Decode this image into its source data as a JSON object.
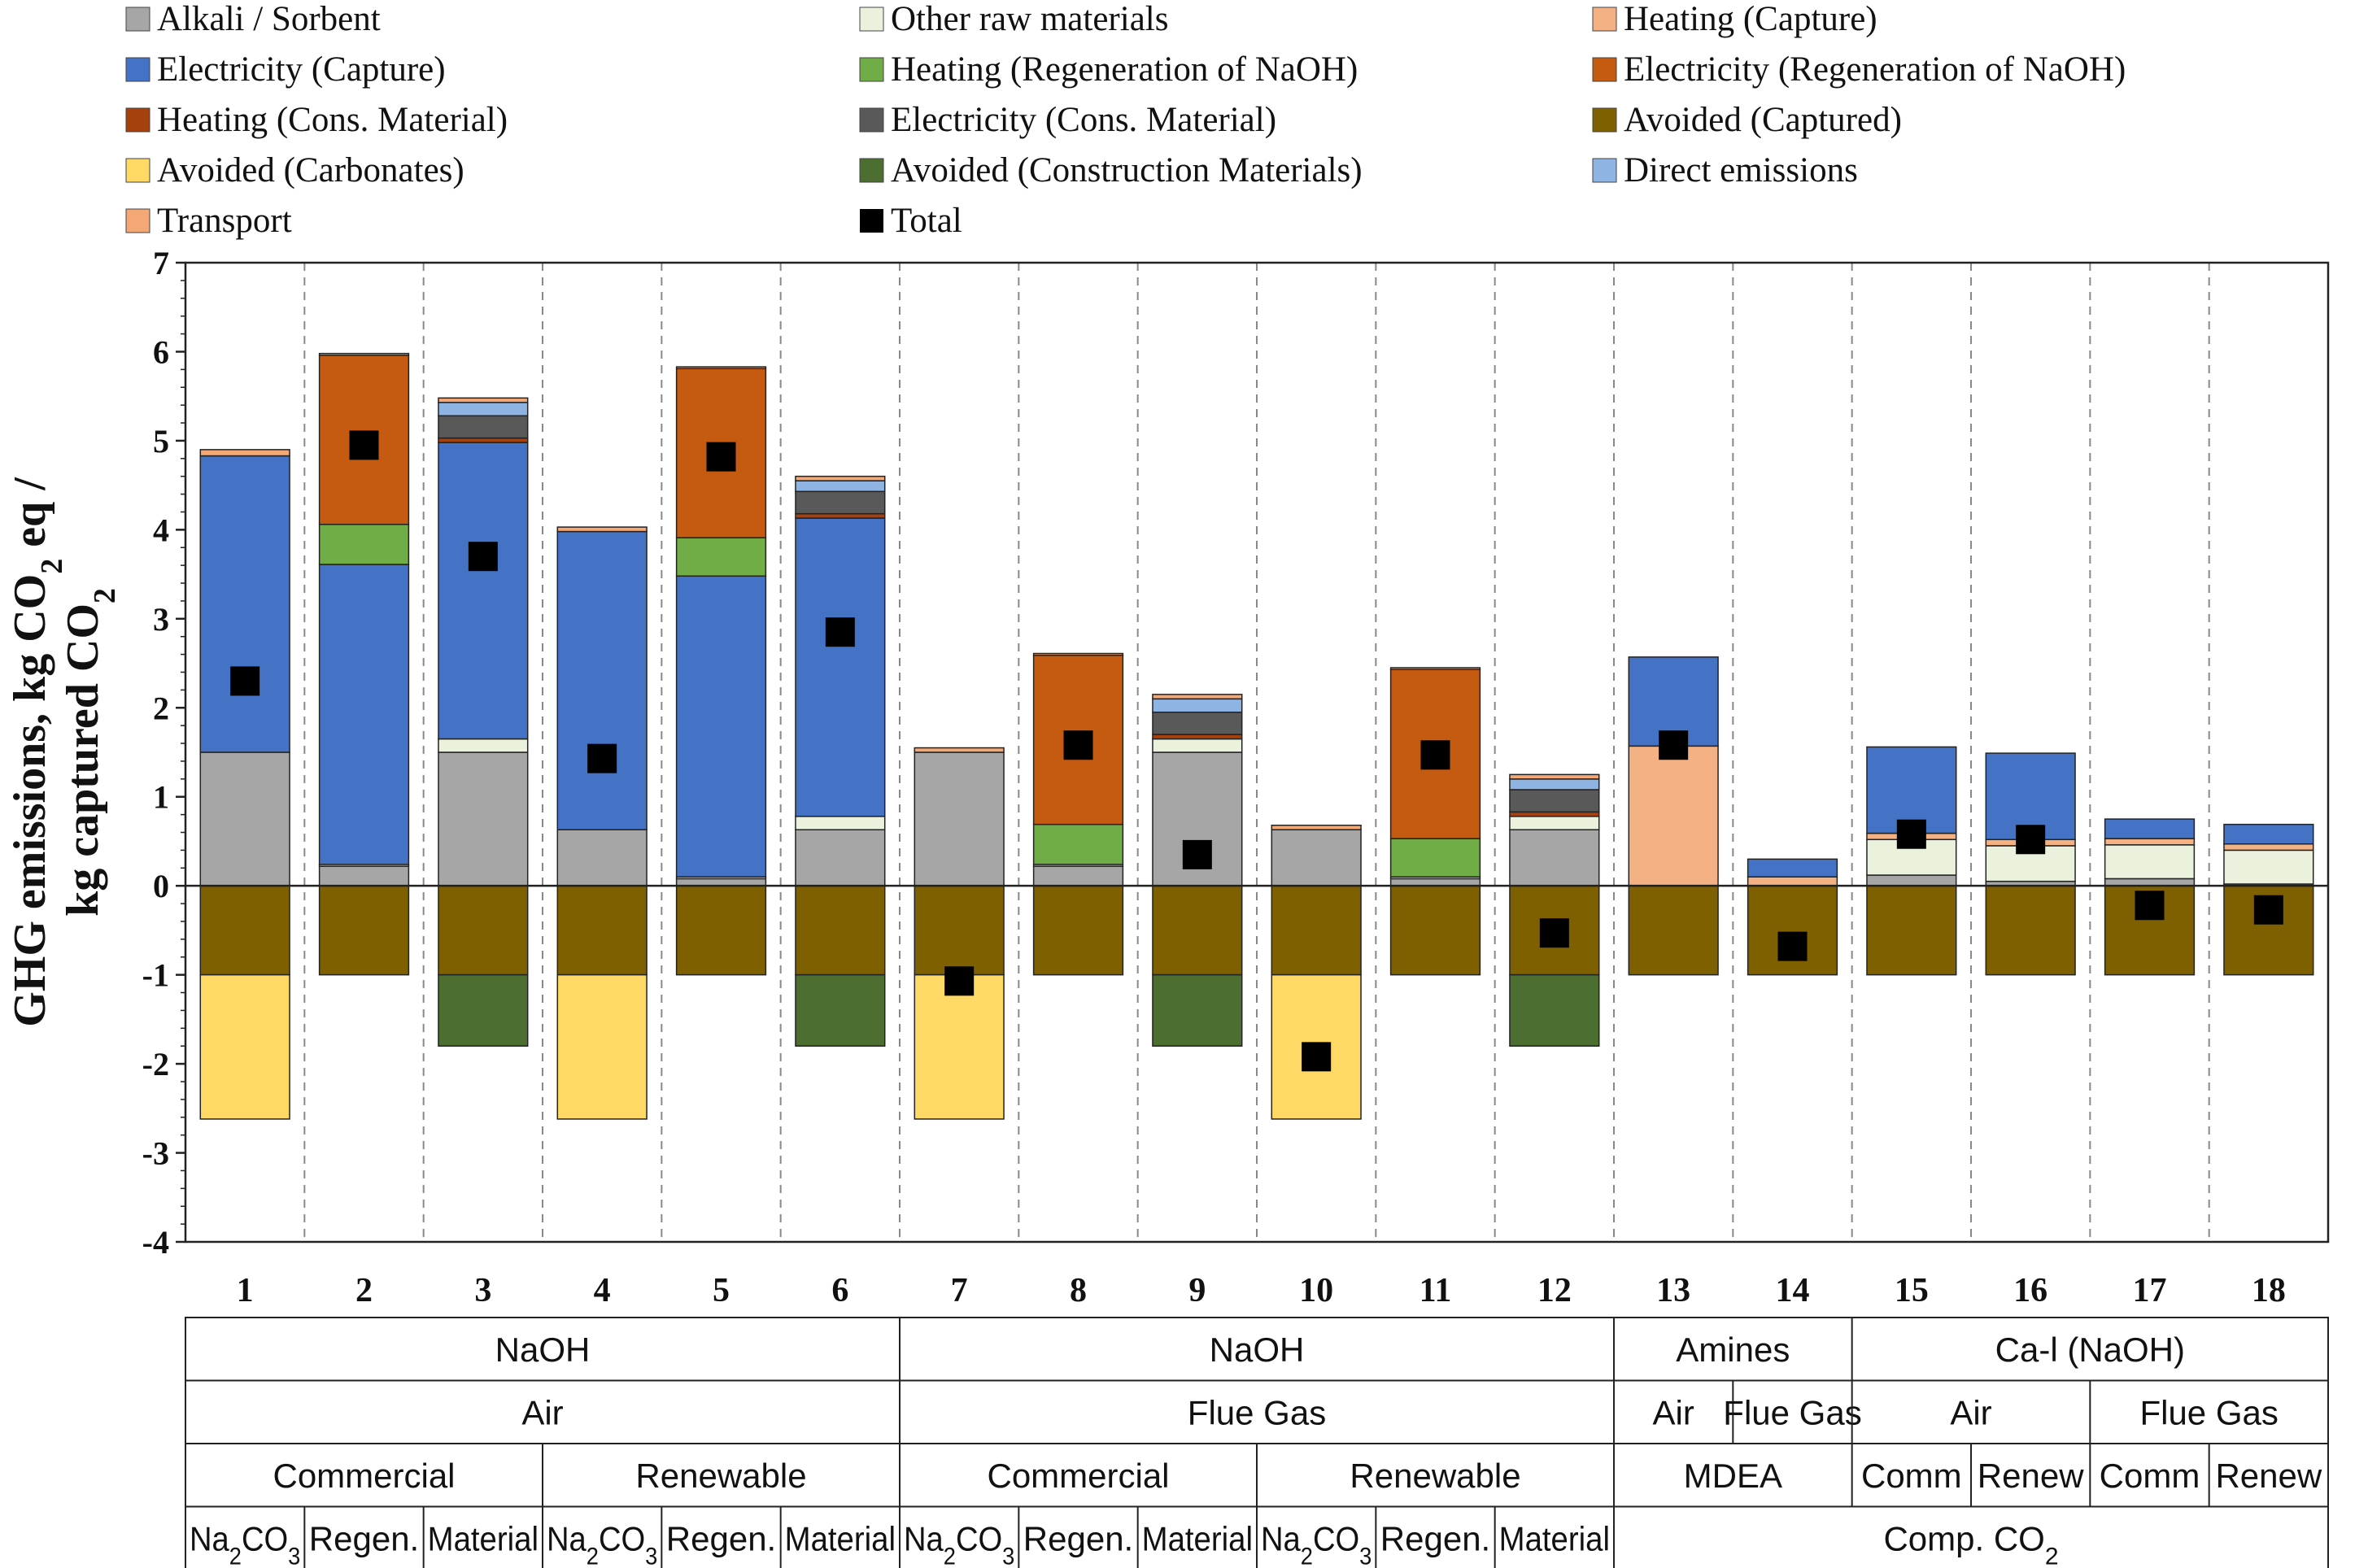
{
  "chart_data": {
    "type": "bar",
    "stacked": true,
    "ylabel_lines": [
      "GHG emissions, kg CO₂ eq /",
      "kg captured CO₂"
    ],
    "ylim": [
      -4,
      7
    ],
    "yticks": [
      "7",
      "6",
      "5",
      "4",
      "3",
      "2",
      "1",
      "0",
      "-1",
      "-2",
      "-3",
      "-4"
    ],
    "categories": [
      "1",
      "2",
      "3",
      "4",
      "5",
      "6",
      "7",
      "8",
      "9",
      "10",
      "11",
      "12",
      "13",
      "14",
      "15",
      "16",
      "17",
      "18"
    ],
    "grid": "dashed vertical separators between categories",
    "legend_position": "top",
    "legend": [
      {
        "name": "Alkali / Sorbent",
        "color": "#a6a6a6"
      },
      {
        "name": "Other raw materials",
        "color": "#eaf1dd"
      },
      {
        "name": "Heating (Capture)",
        "color": "#f4b183"
      },
      {
        "name": "Electricity (Capture)",
        "color": "#4472c4"
      },
      {
        "name": "Heating (Regeneration of NaOH)",
        "color": "#70ad47"
      },
      {
        "name": "Electricity (Regeneration of NaOH)",
        "color": "#c55a11"
      },
      {
        "name": "Heating (Cons. Material)",
        "color": "#a5400f"
      },
      {
        "name": "Electricity (Cons. Material)",
        "color": "#595959"
      },
      {
        "name": "Avoided (Captured)",
        "color": "#7f6000"
      },
      {
        "name": "Avoided (Carbonates)",
        "color": "#ffd966"
      },
      {
        "name": "Avoided (Construction Materials)",
        "color": "#4c6e31"
      },
      {
        "name": "Direct emissions",
        "color": "#8eb4e3"
      },
      {
        "name": "Transport",
        "color": "#f4a875"
      },
      {
        "name": "Total",
        "color": "#000000"
      }
    ],
    "series": [
      {
        "name": "Alkali / Sorbent",
        "values": [
          1.5,
          0.22,
          1.5,
          0.63,
          0.08,
          0.63,
          1.5,
          0.22,
          1.5,
          0.63,
          0.08,
          0.63,
          0,
          0,
          0.12,
          0.05,
          0.08,
          0.02
        ]
      },
      {
        "name": "Other raw materials",
        "values": [
          0,
          0.02,
          0.15,
          0,
          0.02,
          0.15,
          0,
          0.02,
          0.15,
          0,
          0.02,
          0.15,
          0,
          0,
          0.4,
          0.4,
          0.38,
          0.38
        ]
      },
      {
        "name": "Heating (Capture)",
        "values": [
          0,
          0,
          0,
          0,
          0,
          0,
          0,
          0,
          0,
          0,
          0,
          0,
          1.57,
          0.1,
          0.07,
          0.07,
          0.07,
          0.07
        ]
      },
      {
        "name": "Electricity (Capture)",
        "values": [
          3.33,
          3.37,
          3.33,
          3.35,
          3.38,
          3.35,
          0,
          0,
          0,
          0,
          0,
          0,
          1.0,
          0.2,
          0.97,
          0.97,
          0.22,
          0.22
        ]
      },
      {
        "name": "Heating (Regeneration of NaOH)",
        "values": [
          0,
          0.45,
          0,
          0,
          0.43,
          0,
          0,
          0.45,
          0,
          0,
          0.43,
          0,
          0,
          0,
          0,
          0,
          0,
          0
        ]
      },
      {
        "name": "Electricity (Regeneration of NaOH)",
        "values": [
          0,
          1.9,
          0,
          0,
          1.9,
          0,
          0,
          1.9,
          0,
          0,
          1.9,
          0,
          0,
          0,
          0,
          0,
          0,
          0
        ]
      },
      {
        "name": "Heating (Cons. Material)",
        "values": [
          0,
          0,
          0.05,
          0,
          0,
          0.05,
          0,
          0,
          0.05,
          0,
          0,
          0.05,
          0,
          0,
          0,
          0,
          0,
          0
        ]
      },
      {
        "name": "Electricity (Cons. Material)",
        "values": [
          0,
          0,
          0.25,
          0,
          0,
          0.25,
          0,
          0,
          0.25,
          0,
          0,
          0.25,
          0,
          0,
          0,
          0,
          0,
          0
        ]
      },
      {
        "name": "Direct emissions",
        "values": [
          0,
          0,
          0.15,
          0,
          0,
          0.12,
          0,
          0,
          0.15,
          0,
          0,
          0.12,
          0,
          0,
          0,
          0,
          0,
          0
        ]
      },
      {
        "name": "Transport",
        "values": [
          0.07,
          0.02,
          0.05,
          0.05,
          0.02,
          0.05,
          0.05,
          0.02,
          0.05,
          0.05,
          0.02,
          0.05,
          0,
          0,
          0,
          0,
          0,
          0
        ]
      },
      {
        "name": "Avoided (Captured)",
        "values": [
          -1,
          -1,
          -1,
          -1,
          -1,
          -1,
          -1,
          -1,
          -1,
          -1,
          -1,
          -1,
          -1,
          -1,
          -1,
          -1,
          -1,
          -1
        ]
      },
      {
        "name": "Avoided (Carbonates)",
        "values": [
          -1.62,
          0,
          0,
          -1.62,
          0,
          0,
          -1.62,
          0,
          0,
          -1.62,
          0,
          0,
          0,
          0,
          0,
          0,
          0,
          0
        ]
      },
      {
        "name": "Avoided (Construction Materials)",
        "values": [
          0,
          0,
          -0.8,
          0,
          0,
          -0.8,
          0,
          0,
          -0.8,
          0,
          0,
          -0.8,
          0,
          0,
          0,
          0,
          0,
          0
        ]
      }
    ],
    "totals": [
      2.3,
      4.95,
      3.7,
      1.43,
      4.82,
      2.85,
      -1.07,
      1.58,
      0.35,
      -1.92,
      1.47,
      -0.53,
      1.58,
      -0.68,
      0.58,
      0.52,
      -0.22,
      -0.27
    ],
    "table_rows": [
      [
        {
          "span": 6,
          "label": "NaOH",
          "sub": ""
        },
        {
          "span": 6,
          "label": "NaOH",
          "sub": ""
        },
        {
          "span": 2,
          "label": "Amines",
          "sub": ""
        },
        {
          "span": 4,
          "label": "Ca-l (NaOH)",
          "sub": ""
        }
      ],
      [
        {
          "span": 6,
          "label": "Air",
          "sub": ""
        },
        {
          "span": 6,
          "label": "Flue Gas",
          "sub": ""
        },
        {
          "span": 1,
          "label": "Air",
          "sub": ""
        },
        {
          "span": 1,
          "label": "Flue Gas",
          "sub": ""
        },
        {
          "span": 2,
          "label": "Air",
          "sub": ""
        },
        {
          "span": 2,
          "label": "Flue Gas",
          "sub": ""
        }
      ],
      [
        {
          "span": 3,
          "label": "Commercial",
          "sub": ""
        },
        {
          "span": 3,
          "label": "Renewable",
          "sub": ""
        },
        {
          "span": 3,
          "label": "Commercial",
          "sub": ""
        },
        {
          "span": 3,
          "label": "Renewable",
          "sub": ""
        },
        {
          "span": 2,
          "label": "MDEA",
          "sub": ""
        },
        {
          "span": 1,
          "label": "Comm",
          "sub": ""
        },
        {
          "span": 1,
          "label": "Renew",
          "sub": ""
        },
        {
          "span": 1,
          "label": "Comm",
          "sub": ""
        },
        {
          "span": 1,
          "label": "Renew",
          "sub": ""
        }
      ],
      [
        {
          "span": 1,
          "label": "Na",
          "sub": "2",
          "tail": "CO",
          "sub2": "3"
        },
        {
          "span": 1,
          "label": "Regen.",
          "sub": ""
        },
        {
          "span": 1,
          "label": "Material",
          "sub": ""
        },
        {
          "span": 1,
          "label": "Na",
          "sub": "2",
          "tail": "CO",
          "sub2": "3"
        },
        {
          "span": 1,
          "label": "Regen.",
          "sub": ""
        },
        {
          "span": 1,
          "label": "Material",
          "sub": ""
        },
        {
          "span": 1,
          "label": "Na",
          "sub": "2",
          "tail": "CO",
          "sub2": "3"
        },
        {
          "span": 1,
          "label": "Regen.",
          "sub": ""
        },
        {
          "span": 1,
          "label": "Material",
          "sub": ""
        },
        {
          "span": 1,
          "label": "Na",
          "sub": "2",
          "tail": "CO",
          "sub2": "3"
        },
        {
          "span": 1,
          "label": "Regen.",
          "sub": ""
        },
        {
          "span": 1,
          "label": "Material",
          "sub": ""
        },
        {
          "span": 6,
          "label": "Comp. CO",
          "sub": "2"
        }
      ]
    ]
  }
}
